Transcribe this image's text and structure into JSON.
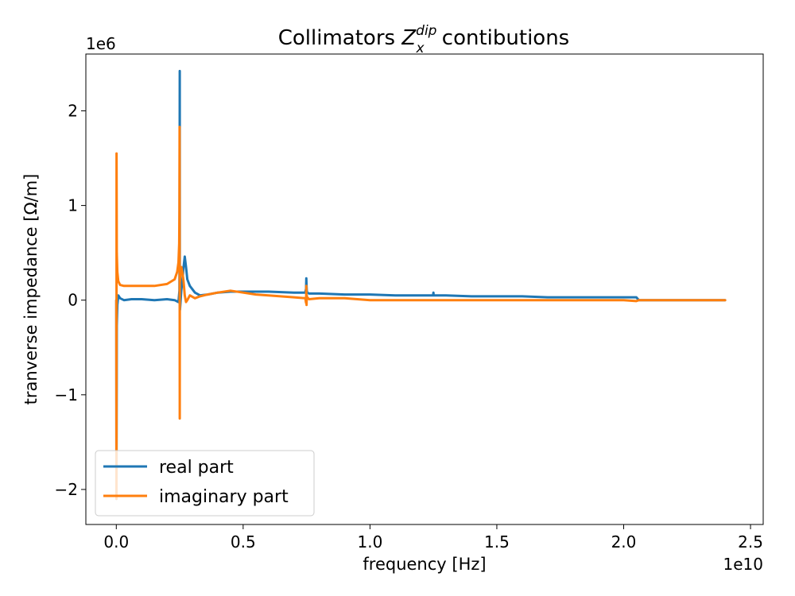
{
  "chart_data": {
    "type": "line",
    "title": {
      "prefix": "Collimators ",
      "symbol": "Z",
      "superscript": "dip",
      "subscript": "x",
      "suffix": " contibutions"
    },
    "xlabel": "frequency [Hz]",
    "ylabel": "tranverse impedance [Ω/m]",
    "x_offset_text": "1e10",
    "y_offset_text": "1e6",
    "x_scale": 10000000000,
    "y_scale": 1000000,
    "xlim": [
      -0.12,
      2.55
    ],
    "ylim": [
      -2.37,
      2.6
    ],
    "x_ticks": [
      0.0,
      0.5,
      1.0,
      1.5,
      2.0,
      2.5
    ],
    "x_tick_labels": [
      "0.0",
      "0.5",
      "1.0",
      "1.5",
      "2.0",
      "2.5"
    ],
    "y_ticks": [
      -2,
      -1,
      0,
      1,
      2
    ],
    "y_tick_labels": [
      "−2",
      "−1",
      "0",
      "1",
      "2"
    ],
    "grid": false,
    "legend_position": "lower-left",
    "series": [
      {
        "name": "real part",
        "color": "#1f77b4",
        "x": [
          0.0,
          0.0005,
          0.001,
          0.0015,
          0.002,
          0.004,
          0.008,
          0.015,
          0.03,
          0.06,
          0.1,
          0.15,
          0.2,
          0.23,
          0.245,
          0.249,
          0.2495,
          0.25,
          0.2505,
          0.251,
          0.253,
          0.256,
          0.26,
          0.265,
          0.27,
          0.275,
          0.28,
          0.29,
          0.31,
          0.33,
          0.36,
          0.4,
          0.45,
          0.5,
          0.55,
          0.6,
          0.7,
          0.745,
          0.748,
          0.749,
          0.75,
          0.751,
          0.752,
          0.76,
          0.8,
          0.9,
          1.0,
          1.1,
          1.2,
          1.249,
          1.25,
          1.251,
          1.3,
          1.4,
          1.5,
          1.6,
          1.7,
          1.8,
          1.9,
          2.0,
          2.05,
          2.06,
          2.1,
          2.2,
          2.3,
          2.4
        ],
        "y": [
          0.0,
          -2.1,
          -1.6,
          -0.9,
          -0.27,
          -0.05,
          0.05,
          0.02,
          0.0,
          0.01,
          0.01,
          0.0,
          0.01,
          0.0,
          -0.02,
          0.1,
          0.8,
          2.42,
          0.3,
          -0.1,
          -0.03,
          0.1,
          0.2,
          0.35,
          0.46,
          0.35,
          0.22,
          0.15,
          0.08,
          0.05,
          0.06,
          0.08,
          0.09,
          0.09,
          0.09,
          0.09,
          0.08,
          0.08,
          0.12,
          0.23,
          0.15,
          0.1,
          0.08,
          0.07,
          0.07,
          0.06,
          0.06,
          0.05,
          0.05,
          0.05,
          0.08,
          0.05,
          0.05,
          0.04,
          0.04,
          0.04,
          0.03,
          0.03,
          0.03,
          0.03,
          0.03,
          0.0,
          0.0,
          0.0,
          0.0,
          0.0
        ]
      },
      {
        "name": "imaginary part",
        "color": "#ff7f0e",
        "x": [
          0.0,
          0.0005,
          0.001,
          0.0015,
          0.002,
          0.004,
          0.008,
          0.015,
          0.03,
          0.06,
          0.1,
          0.15,
          0.2,
          0.23,
          0.24,
          0.245,
          0.248,
          0.249,
          0.2495,
          0.25,
          0.2505,
          0.251,
          0.253,
          0.256,
          0.26,
          0.265,
          0.27,
          0.275,
          0.28,
          0.29,
          0.31,
          0.33,
          0.36,
          0.4,
          0.45,
          0.5,
          0.55,
          0.6,
          0.7,
          0.745,
          0.748,
          0.749,
          0.75,
          0.751,
          0.752,
          0.76,
          0.8,
          0.9,
          1.0,
          1.2,
          1.4,
          1.6,
          1.8,
          2.0,
          2.05,
          2.06,
          2.1,
          2.2,
          2.3,
          2.4
        ],
        "y": [
          0.0,
          -2.1,
          1.55,
          0.9,
          0.5,
          0.3,
          0.2,
          0.16,
          0.15,
          0.15,
          0.15,
          0.15,
          0.17,
          0.22,
          0.3,
          0.4,
          0.6,
          0.95,
          1.83,
          -1.25,
          0.3,
          0.2,
          0.28,
          0.35,
          0.3,
          0.2,
          0.05,
          -0.02,
          0.0,
          0.05,
          0.02,
          0.04,
          0.06,
          0.08,
          0.1,
          0.08,
          0.06,
          0.05,
          0.03,
          0.02,
          -0.03,
          0.15,
          -0.05,
          0.05,
          0.03,
          0.01,
          0.02,
          0.02,
          0.0,
          0.0,
          0.0,
          0.0,
          0.0,
          0.0,
          -0.01,
          0.0,
          0.0,
          0.0,
          0.0,
          0.0
        ]
      }
    ]
  }
}
